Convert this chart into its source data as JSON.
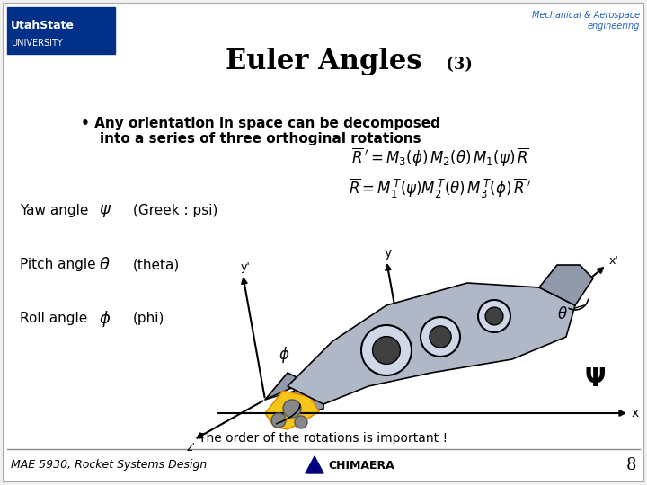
{
  "title_main": "Euler Angles",
  "title_sub": " (3)",
  "bullet_text": "Any orientation in space can be decomposed\ninto a series of three orthoginal rotations",
  "eq1": "$\\overline{R}\\,' = M_3(\\phi)\\, M_2(\\theta)\\, M_1(\\psi)\\, \\overline{R}$",
  "eq2": "$\\overline{R} = M_1^{\\,T}(\\psi) M_2^{\\,T}(\\theta)\\, M_3^{\\,T}(\\phi)\\, \\overline{R}\\,'$",
  "yaw_label": "Yaw angle",
  "yaw_sym": "$\\psi$",
  "yaw_greek": "(Greek : psi)",
  "pitch_label": "Pitch angle",
  "pitch_sym": "$\\theta$",
  "pitch_greek": "(theta)",
  "roll_label": "Roll angle",
  "roll_sym": "$\\phi$",
  "roll_greek": "(phi)",
  "caption": "The order of the rotations is important !",
  "footer_left": "MAE 5930, Rocket Systems Design",
  "footer_num": "8",
  "bg_color": "#f0f0ee",
  "header_blue": "#003087",
  "border_color": "#aaaaaa",
  "usu_box_color": "#003087",
  "usu_text": "UtahState\nUNIVERSITY",
  "mae_header": "Mechanical & Aerospace\nengineering"
}
